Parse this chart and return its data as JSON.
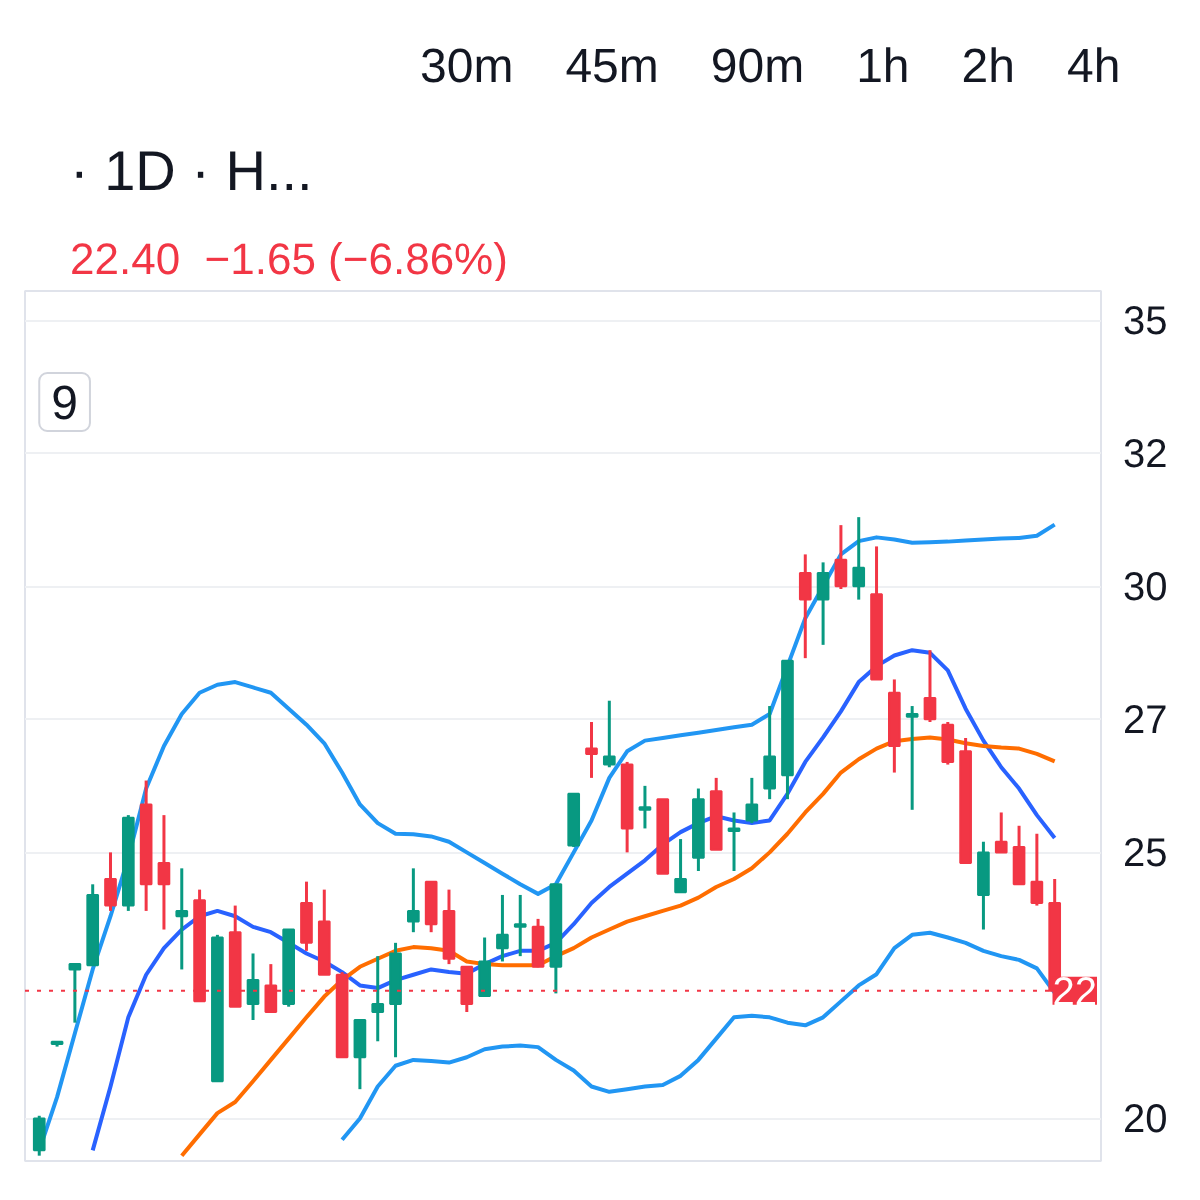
{
  "chart_data": {
    "type": "candlestick",
    "title": "· 1D · H...",
    "subtitle": "22.40  −1.65 (−6.86%)",
    "annotations": [
      "30m",
      "45m",
      "90m",
      "1h",
      "2h",
      "4h",
      "9"
    ],
    "categories": [
      null,
      null,
      null,
      null,
      null,
      null,
      null,
      null,
      null,
      null,
      null,
      null,
      null,
      null,
      null,
      null,
      null,
      null,
      null,
      null,
      null,
      null,
      null,
      null,
      null,
      null,
      null,
      null,
      null,
      null,
      null,
      null,
      null,
      null,
      null,
      null,
      null,
      null,
      null,
      null,
      null,
      null,
      null,
      null,
      null,
      null,
      null,
      null,
      null,
      null,
      null,
      null,
      null,
      null,
      null,
      null,
      null,
      null
    ],
    "ohlc": [
      [
        19.4,
        20.05,
        19.3,
        20.0
      ],
      [
        21.4,
        21.45,
        21.35,
        21.4
      ],
      [
        22.8,
        22.9,
        21.8,
        22.9
      ],
      [
        22.88,
        24.4,
        22.88,
        24.2
      ],
      [
        24.5,
        25.0,
        23.9,
        24.0
      ],
      [
        24.0,
        25.7,
        23.9,
        25.65
      ],
      [
        25.9,
        26.35,
        23.9,
        24.4
      ],
      [
        24.8,
        25.7,
        23.55,
        24.4
      ],
      [
        23.8,
        24.7,
        22.8,
        23.9
      ],
      [
        24.1,
        24.3,
        22.2,
        22.2
      ],
      [
        20.7,
        23.45,
        20.7,
        23.4
      ],
      [
        23.5,
        24.0,
        22.1,
        22.1
      ],
      [
        22.15,
        23.1,
        21.85,
        22.6
      ],
      [
        22.5,
        22.9,
        22.0,
        22.0
      ],
      [
        22.15,
        23.55,
        22.1,
        23.55
      ],
      [
        24.05,
        24.45,
        23.15,
        23.3
      ],
      [
        23.7,
        24.3,
        22.7,
        22.7
      ],
      [
        22.7,
        22.75,
        21.15,
        21.15
      ],
      [
        21.15,
        21.85,
        20.55,
        21.85
      ],
      [
        22.0,
        23.05,
        21.45,
        22.15
      ],
      [
        22.15,
        23.3,
        21.15,
        23.1
      ],
      [
        23.7,
        24.7,
        23.5,
        23.9
      ],
      [
        24.45,
        24.45,
        23.5,
        23.65
      ],
      [
        23.9,
        24.3,
        22.9,
        23.0
      ],
      [
        22.85,
        22.85,
        22.0,
        22.15
      ],
      [
        22.3,
        23.4,
        22.3,
        22.95
      ],
      [
        23.2,
        24.2,
        22.95,
        23.45
      ],
      [
        23.6,
        24.2,
        23.05,
        23.65
      ],
      [
        23.6,
        23.75,
        22.84,
        22.85
      ],
      [
        22.85,
        24.4,
        22.35,
        24.4
      ],
      [
        25.13,
        26.1,
        25.1,
        26.1
      ],
      [
        26.95,
        27.45,
        26.4,
        26.85
      ],
      [
        26.65,
        27.85,
        26.6,
        26.8
      ],
      [
        26.65,
        26.7,
        25.0,
        25.45
      ],
      [
        25.8,
        26.25,
        25.45,
        25.85
      ],
      [
        26.0,
        26.0,
        24.6,
        24.6
      ],
      [
        24.25,
        25.25,
        24.25,
        24.5
      ],
      [
        24.9,
        26.2,
        24.65,
        26.0
      ],
      [
        26.15,
        26.4,
        25.05,
        25.05
      ],
      [
        25.4,
        25.75,
        24.65,
        25.45
      ],
      [
        25.6,
        26.4,
        25.55,
        25.9
      ],
      [
        26.2,
        27.75,
        26.0,
        26.8
      ],
      [
        26.45,
        28.6,
        26.0,
        28.6
      ],
      [
        30.25,
        30.6,
        28.65,
        29.75
      ],
      [
        29.75,
        30.45,
        28.9,
        30.25
      ],
      [
        30.5,
        31.15,
        29.95,
        30.0
      ],
      [
        30.0,
        31.3,
        29.75,
        30.35
      ],
      [
        29.85,
        30.75,
        28.25,
        28.25
      ],
      [
        28.0,
        28.25,
        26.5,
        27.0
      ],
      [
        27.55,
        27.75,
        25.8,
        27.6
      ],
      [
        27.9,
        28.8,
        27.45,
        27.5
      ],
      [
        27.4,
        27.45,
        26.65,
        26.7
      ],
      [
        26.9,
        27.15,
        24.8,
        24.8
      ],
      [
        24.2,
        25.2,
        23.55,
        25.0
      ],
      [
        25.2,
        25.75,
        25.0,
        25.0
      ],
      [
        25.1,
        25.5,
        24.4,
        24.4
      ],
      [
        24.45,
        25.35,
        24.0,
        24.05
      ],
      [
        24.05,
        24.5,
        22.4,
        22.4
      ]
    ],
    "series": [
      {
        "type": "line",
        "color": "#2196f3",
        "values": [
          19.4,
          20.4,
          21.6,
          22.8,
          23.8,
          24.9,
          26.2,
          27.0,
          27.6,
          28.0,
          28.15,
          28.2,
          28.1,
          28.0,
          27.7,
          27.4,
          27.05,
          26.5,
          25.9,
          25.55,
          25.35,
          25.34,
          25.3,
          25.2,
          25.0,
          24.8,
          24.6,
          24.4,
          24.22,
          24.4,
          25.0,
          25.6,
          26.4,
          26.9,
          27.1,
          27.15,
          27.2,
          27.25,
          27.3,
          27.35,
          27.4,
          27.6,
          28.5,
          29.4,
          30.0,
          30.6,
          30.85,
          30.92,
          30.88,
          30.82,
          30.83,
          30.84,
          30.86,
          30.88,
          30.9,
          30.91,
          30.95,
          31.16
        ]
      },
      {
        "type": "line",
        "color": "#2962ff",
        "values": [
          null,
          null,
          null,
          19.4,
          20.6,
          21.9,
          22.7,
          23.2,
          23.55,
          23.8,
          23.9,
          23.8,
          23.6,
          23.5,
          23.3,
          23.1,
          22.95,
          22.75,
          22.5,
          22.45,
          22.6,
          22.7,
          22.8,
          22.75,
          22.72,
          22.9,
          23.05,
          23.15,
          23.15,
          23.3,
          23.65,
          24.05,
          24.35,
          24.6,
          24.85,
          25.15,
          25.38,
          25.55,
          25.68,
          25.6,
          25.55,
          25.6,
          26.1,
          26.7,
          27.16,
          27.65,
          28.2,
          28.5,
          28.7,
          28.8,
          28.75,
          28.42,
          27.7,
          27.1,
          26.6,
          26.2,
          25.7,
          25.27
        ]
      },
      {
        "type": "line",
        "color": "#2196f3",
        "values": [
          null,
          null,
          null,
          null,
          null,
          null,
          null,
          null,
          null,
          null,
          null,
          null,
          null,
          null,
          null,
          null,
          null,
          19.6,
          20.0,
          20.6,
          20.99,
          21.1,
          21.08,
          21.05,
          21.15,
          21.3,
          21.35,
          21.37,
          21.34,
          21.1,
          20.9,
          20.6,
          20.5,
          20.55,
          20.6,
          20.63,
          20.8,
          21.1,
          21.5,
          21.9,
          21.93,
          21.9,
          21.8,
          21.75,
          21.9,
          22.2,
          22.5,
          22.71,
          23.2,
          23.45,
          23.49,
          23.4,
          23.3,
          23.15,
          23.05,
          22.98,
          22.82,
          22.36
        ]
      },
      {
        "type": "line",
        "color": "#ff6d00",
        "values": [
          null,
          null,
          null,
          null,
          null,
          null,
          null,
          null,
          19.3,
          19.7,
          20.1,
          20.31,
          20.7,
          21.1,
          21.5,
          21.9,
          22.29,
          22.6,
          22.85,
          23.0,
          23.15,
          23.22,
          23.2,
          23.15,
          22.95,
          22.9,
          22.88,
          22.88,
          22.88,
          23.05,
          23.2,
          23.4,
          23.55,
          23.7,
          23.8,
          23.9,
          24.0,
          24.15,
          24.35,
          24.5,
          24.7,
          25.0,
          25.35,
          25.75,
          26.1,
          26.5,
          26.75,
          26.95,
          27.09,
          27.13,
          27.16,
          27.12,
          27.05,
          27.0,
          26.97,
          26.95,
          26.85,
          26.71
        ]
      }
    ],
    "ylim": [
      19.2,
      35.55
    ],
    "yticks": [
      20,
      25,
      {
        "value": 27.5,
        "label": "27"
      },
      30,
      {
        "value": 32.5,
        "label": "32"
      },
      35
    ],
    "ref_lines": [
      {
        "axis": "y",
        "value": 22.4,
        "label": "22",
        "color": "#f23645",
        "line_style": "dotted"
      }
    ],
    "grid": "y",
    "tick_labels": "y"
  }
}
